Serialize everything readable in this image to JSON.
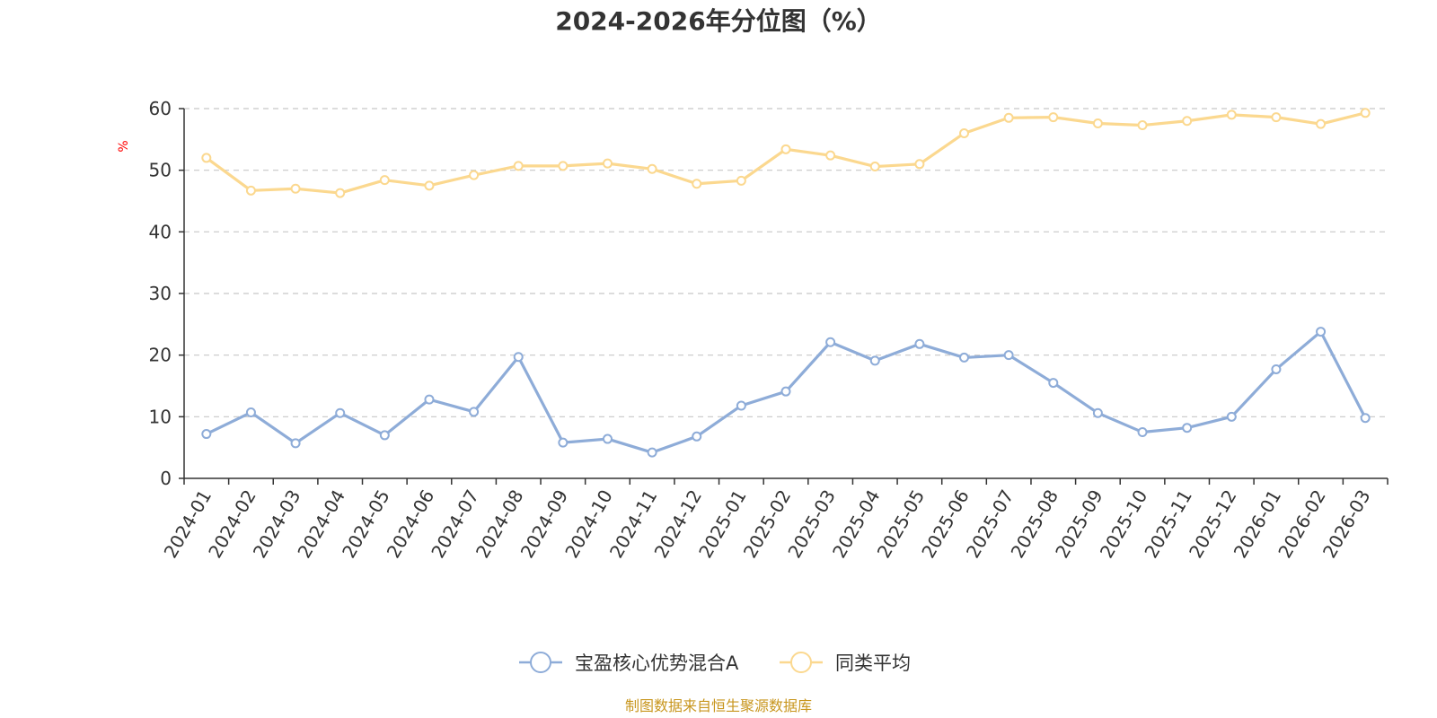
{
  "chart_data": {
    "type": "line",
    "title": "2024-2026年分位图（%）",
    "ylabel": "%",
    "xlabel": "",
    "ylim": [
      0,
      60
    ],
    "yticks": [
      0,
      10,
      20,
      30,
      40,
      50,
      60
    ],
    "grid": true,
    "legend_position": "bottom-center",
    "categories": [
      "2024-01",
      "2024-02",
      "2024-03",
      "2024-04",
      "2024-05",
      "2024-06",
      "2024-07",
      "2024-08",
      "2024-09",
      "2024-10",
      "2024-11",
      "2024-12",
      "2025-01",
      "2025-02",
      "2025-03",
      "2025-04",
      "2025-05",
      "2025-06",
      "2025-07",
      "2025-08",
      "2025-09",
      "2025-10",
      "2025-11",
      "2025-12",
      "2026-01",
      "2026-02",
      "2026-03"
    ],
    "series": [
      {
        "name": "宝盈核心优势混合A",
        "color": "#8eacd8",
        "values": [
          7.2,
          10.7,
          5.7,
          10.6,
          7.0,
          12.8,
          10.8,
          19.7,
          5.8,
          6.4,
          4.2,
          6.8,
          11.8,
          14.1,
          22.1,
          19.1,
          21.8,
          19.6,
          20.0,
          15.5,
          10.6,
          7.5,
          8.2,
          10.0,
          17.7,
          23.8,
          9.8
        ]
      },
      {
        "name": "同类平均",
        "color": "#fbd88f",
        "values": [
          52.0,
          46.7,
          47.0,
          46.3,
          48.4,
          47.5,
          49.2,
          50.7,
          50.7,
          51.1,
          50.2,
          47.8,
          48.3,
          53.4,
          52.4,
          50.6,
          51.0,
          56.0,
          58.5,
          58.6,
          57.6,
          57.3,
          58.0,
          59.0,
          58.6,
          57.5,
          59.3
        ]
      }
    ]
  },
  "footer": {
    "source": "制图数据来自恒生聚源数据库"
  }
}
